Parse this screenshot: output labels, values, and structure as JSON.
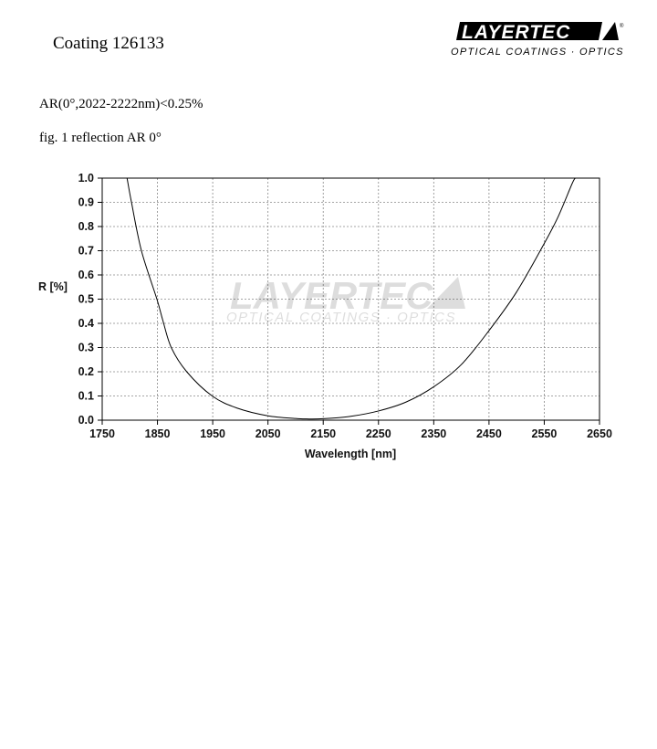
{
  "header": {
    "title": "Coating  126133",
    "spec": "AR(0°,2022-2222nm)<0.25%",
    "figure_caption": "fig. 1 reflection AR  0°",
    "logo_text": "LAYERTEC",
    "logo_subtext": "OPTICAL COATINGS · OPTICS"
  },
  "chart_data": {
    "type": "line",
    "title": "",
    "xlabel": "Wavelength [nm]",
    "ylabel": "R [%]",
    "xlim": [
      1750,
      2650
    ],
    "ylim": [
      0,
      1.0
    ],
    "xticks": [
      "1750",
      "1850",
      "1950",
      "2050",
      "2150",
      "2250",
      "2350",
      "2450",
      "2550",
      "2650"
    ],
    "yticks": [
      "0.0",
      "0.1",
      "0.2",
      "0.3",
      "0.4",
      "0.5",
      "0.6",
      "0.7",
      "0.8",
      "0.9",
      "1.0"
    ],
    "grid": true,
    "line_color": "#000000",
    "watermark": "LAYERTEC OPTICAL COATINGS · OPTICS",
    "series": [
      {
        "x": [
          1795,
          1803,
          1821,
          1849,
          1860,
          1875,
          1903,
          1949,
          1994,
          2050,
          2100,
          2120,
          2150,
          2200,
          2250,
          2300,
          2350,
          2400,
          2450,
          2500,
          2550,
          2575,
          2600,
          2606
        ],
        "y": [
          1.0,
          0.9,
          0.7,
          0.5,
          0.41,
          0.3,
          0.2,
          0.1,
          0.05,
          0.018,
          0.007,
          0.005,
          0.006,
          0.016,
          0.038,
          0.075,
          0.138,
          0.23,
          0.37,
          0.53,
          0.73,
          0.84,
          0.975,
          1.0
        ]
      }
    ]
  }
}
